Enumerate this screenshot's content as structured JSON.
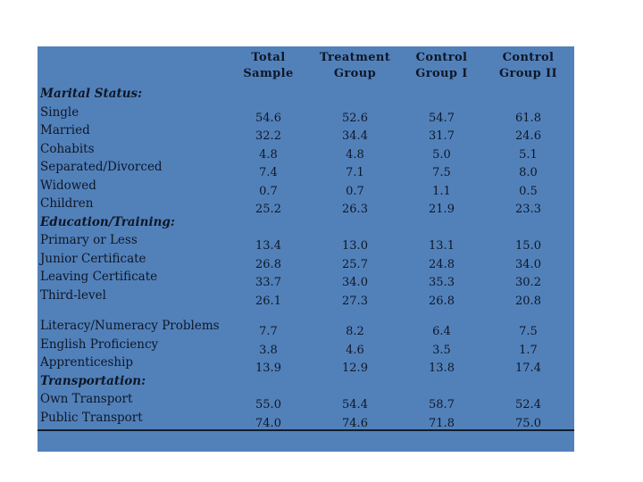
{
  "slide": {
    "background_color": "#ffffff",
    "panel_color": "#5281BA",
    "text_color": "#0e1726",
    "rule_color": "#121c2e"
  },
  "table": {
    "headers": [
      {
        "line1": "Total",
        "line2": "Sample"
      },
      {
        "line1": "Treatment",
        "line2": "Group"
      },
      {
        "line1": "Control",
        "line2": "Group I"
      },
      {
        "line1": "Control",
        "line2": "Group II"
      }
    ],
    "rows": [
      {
        "type": "section",
        "label": "Marital Status:",
        "values": [
          "",
          "",
          "",
          ""
        ]
      },
      {
        "type": "data",
        "label": "Single",
        "values": [
          "54.6",
          "52.6",
          "54.7",
          "61.8"
        ]
      },
      {
        "type": "data",
        "label": "Married",
        "values": [
          "32.2",
          "34.4",
          "31.7",
          "24.6"
        ]
      },
      {
        "type": "data",
        "label": "Cohabits",
        "values": [
          "4.8",
          "4.8",
          "5.0",
          "5.1"
        ]
      },
      {
        "type": "data",
        "label": "Separated/Divorced",
        "values": [
          "7.4",
          "7.1",
          "7.5",
          "8.0"
        ]
      },
      {
        "type": "data",
        "label": "Widowed",
        "values": [
          "0.7",
          "0.7",
          "1.1",
          "0.5"
        ]
      },
      {
        "type": "data",
        "label": "Children",
        "values": [
          "25.2",
          "26.3",
          "21.9",
          "23.3"
        ]
      },
      {
        "type": "section",
        "label": "Education/Training:",
        "values": [
          "",
          "",
          "",
          ""
        ]
      },
      {
        "type": "data",
        "label": "Primary or Less",
        "values": [
          "13.4",
          "13.0",
          "13.1",
          "15.0"
        ]
      },
      {
        "type": "data",
        "label": "Junior Certificate",
        "values": [
          "26.8",
          "25.7",
          "24.8",
          "34.0"
        ]
      },
      {
        "type": "data",
        "label": "Leaving Certificate",
        "values": [
          "33.7",
          "34.0",
          "35.3",
          "30.2"
        ]
      },
      {
        "type": "data",
        "label": "Third-level",
        "values": [
          "26.1",
          "27.3",
          "26.8",
          "20.8"
        ]
      },
      {
        "type": "spacer",
        "label": "",
        "values": [
          "",
          "",
          "",
          ""
        ]
      },
      {
        "type": "data",
        "label": "Literacy/Numeracy Problems",
        "values": [
          "7.7",
          "8.2",
          "6.4",
          "7.5"
        ]
      },
      {
        "type": "data",
        "label": "English Proficiency",
        "values": [
          "3.8",
          "4.6",
          "3.5",
          "1.7"
        ]
      },
      {
        "type": "data",
        "label": "Apprenticeship",
        "values": [
          "13.9",
          "12.9",
          "13.8",
          "17.4"
        ]
      },
      {
        "type": "section",
        "label": "Transportation:",
        "values": [
          "",
          "",
          "",
          ""
        ]
      },
      {
        "type": "data",
        "label": "Own Transport",
        "values": [
          "55.0",
          "54.4",
          "58.7",
          "52.4"
        ]
      },
      {
        "type": "data",
        "label": "Public Transport",
        "values": [
          "74.0",
          "74.6",
          "71.8",
          "75.0"
        ]
      }
    ]
  }
}
